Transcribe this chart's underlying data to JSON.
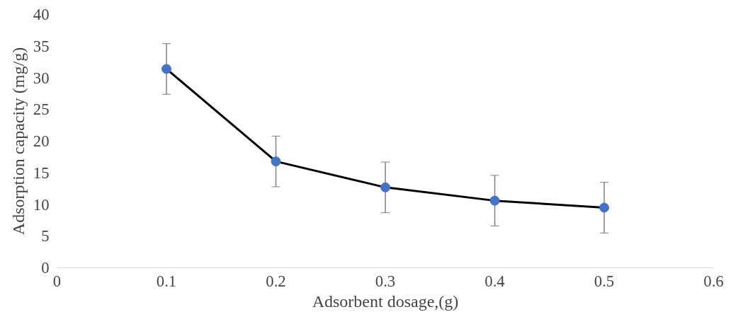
{
  "chart_data": {
    "type": "line",
    "xlabel": "Adsorbent dosage,(g)",
    "ylabel": "Adsorption capacity (mg/g)",
    "x": [
      0.1,
      0.2,
      0.3,
      0.4,
      0.5
    ],
    "series": [
      {
        "color": "#4472c4",
        "values": [
          31.4,
          16.8,
          12.7,
          10.6,
          9.5
        ],
        "errors": [
          4,
          4,
          4,
          4,
          4
        ]
      }
    ],
    "xlim": [
      0,
      0.6
    ],
    "xticks": [
      0,
      0.1,
      0.2,
      0.3,
      0.4,
      0.5,
      0.6
    ],
    "ylim": [
      0,
      40
    ],
    "yticks": [
      0,
      5,
      10,
      15,
      20,
      25,
      30,
      35,
      40
    ],
    "grid": false,
    "marker": "circle",
    "line_style": "solid"
  }
}
